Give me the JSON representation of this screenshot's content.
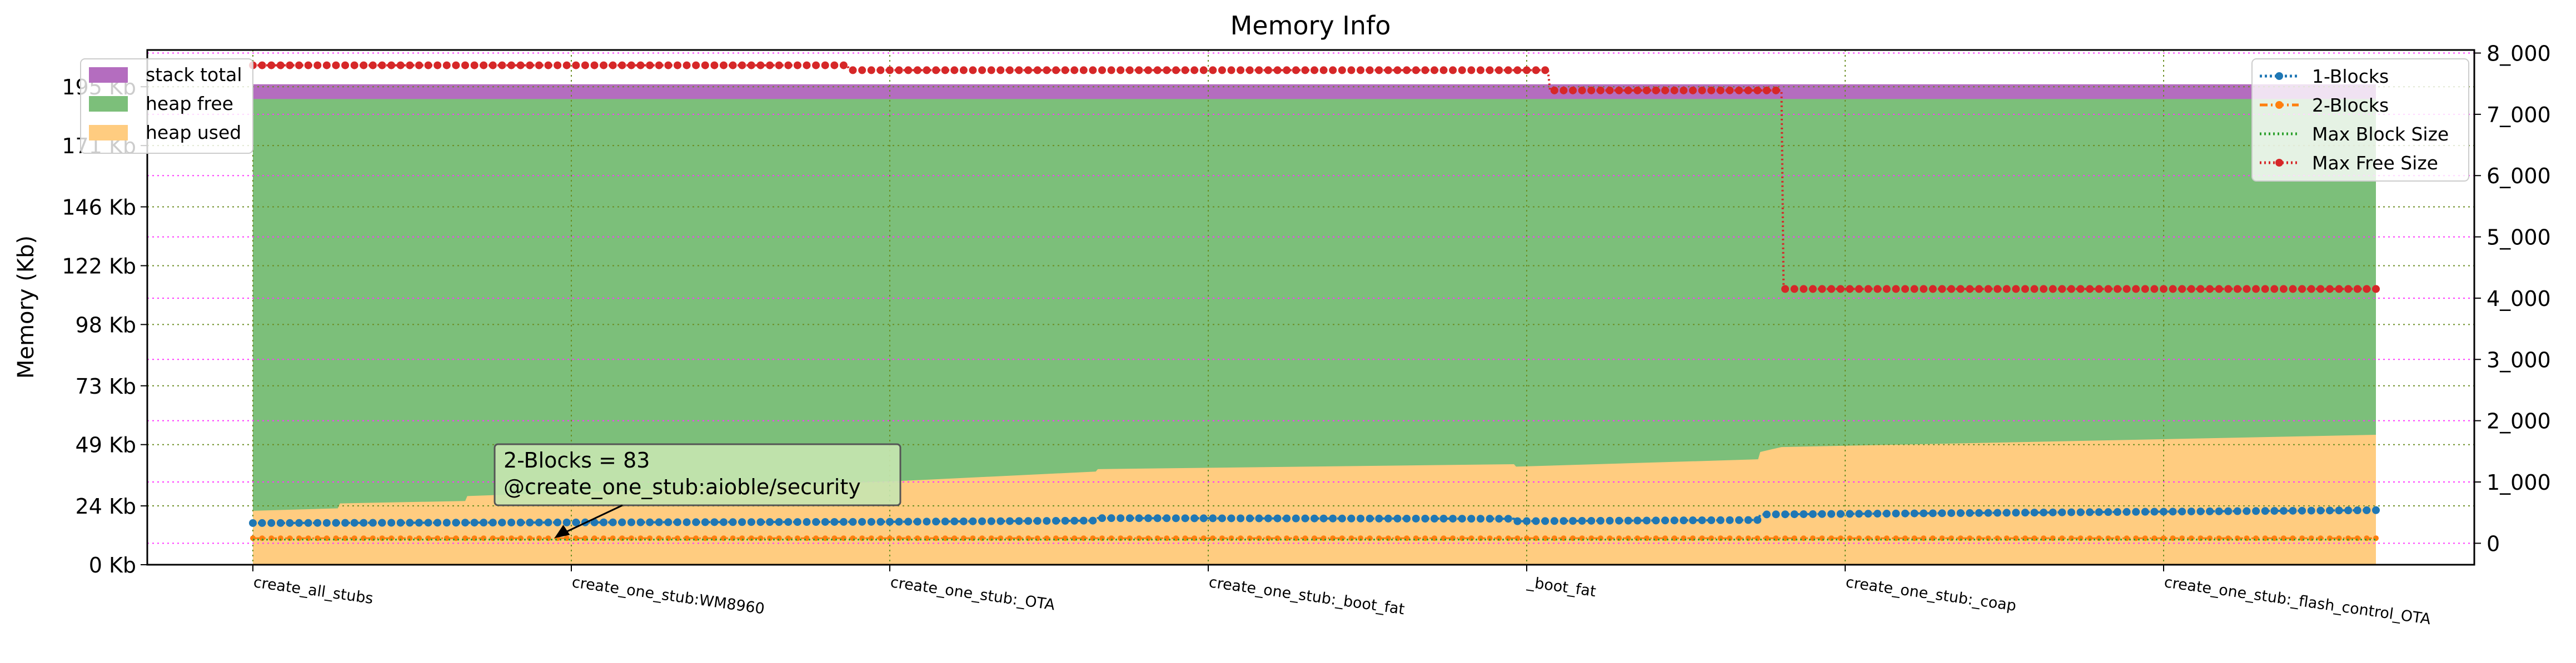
{
  "chart_data": {
    "type": "area",
    "title": "Memory Info",
    "xlabel": "",
    "ylabel": "Memory (Kb)",
    "ylim": [
      0,
      210
    ],
    "y2lim": [
      -350,
      8050
    ],
    "grid": true,
    "y_ticks": [
      0,
      24,
      49,
      73,
      98,
      122,
      146,
      171,
      195
    ],
    "y_tick_labels": [
      "0 Kb",
      "24 Kb",
      "49 Kb",
      "73 Kb",
      "98 Kb",
      "122 Kb",
      "146 Kb",
      "171 Kb",
      "195 Kb"
    ],
    "y2_ticks": [
      0,
      1000,
      2000,
      3000,
      4000,
      5000,
      6000,
      7000,
      8000
    ],
    "y2_tick_labels": [
      "0",
      "1_000",
      "2_000",
      "3_000",
      "4_000",
      "5_000",
      "6_000",
      "7_000",
      "8_000"
    ],
    "x_range": [
      0,
      1000
    ],
    "x_ticks": [
      0,
      150,
      300,
      450,
      600,
      750,
      900
    ],
    "x_tick_labels": [
      "create_all_stubs",
      "create_one_stub:WM8960",
      "create_one_stub:_OTA",
      "create_one_stub:_boot_fat",
      "_boot_fat",
      "create_one_stub:_coap",
      "create_one_stub:_flash_control_OTA"
    ],
    "left_legend": {
      "placement": "top-left",
      "items": [
        {
          "label": "stack total",
          "color": "#b46dbf"
        },
        {
          "label": "heap free",
          "color": "#7cbf7a"
        },
        {
          "label": "heap used",
          "color": "#ffcc80"
        }
      ]
    },
    "right_legend": {
      "placement": "top-right",
      "items": [
        {
          "label": "1-Blocks",
          "color": "#1f77b4",
          "style": "dotted-marker"
        },
        {
          "label": "2-Blocks",
          "color": "#ff7f0e",
          "style": "dashdot-marker"
        },
        {
          "label": "Max Block Size",
          "color": "#2ca02c",
          "style": "dotted"
        },
        {
          "label": "Max Free Size",
          "color": "#d62728",
          "style": "dotted-marker"
        }
      ]
    },
    "areas": [
      {
        "name": "heap used",
        "color": "#ffcc80",
        "x": [
          0,
          40,
          41,
          100,
          101,
          300,
          301,
          397,
          398,
          594,
          595,
          709,
          710,
          720,
          1000
        ],
        "values": [
          22,
          23,
          25,
          26,
          28,
          34,
          34,
          38,
          39,
          41,
          40,
          43,
          46,
          48,
          53
        ]
      },
      {
        "name": "heap free",
        "color": "#7cbf7a",
        "x": [
          0,
          1000
        ],
        "values": [
          190,
          190
        ]
      },
      {
        "name": "stack total",
        "color": "#b46dbf",
        "x": [
          0,
          1000
        ],
        "values": [
          196,
          196
        ]
      }
    ],
    "series": [
      {
        "name": "1-Blocks",
        "axis": "right",
        "color": "#1f77b4",
        "x": [
          0,
          300,
          397,
          398,
          594,
          595,
          709,
          710,
          1000
        ],
        "values": [
          330,
          350,
          370,
          410,
          400,
          360,
          380,
          470,
          540
        ]
      },
      {
        "name": "2-Blocks",
        "axis": "right",
        "color": "#ff7f0e",
        "x": [
          0,
          1000
        ],
        "values": [
          83,
          83
        ]
      },
      {
        "name": "Max Block Size",
        "axis": "right",
        "color": "#2ca02c",
        "x": [
          0,
          1000
        ],
        "values": [
          60,
          60
        ]
      },
      {
        "name": "Max Free Size",
        "axis": "right",
        "color": "#d62728",
        "x": [
          0,
          280,
          281,
          610,
          611,
          720,
          721,
          1000
        ],
        "values": [
          7800,
          7800,
          7720,
          7720,
          7390,
          7390,
          4150,
          4150
        ]
      }
    ],
    "annotation": {
      "lines": [
        "2-Blocks = 83",
        "@create_one_stub:aioble/security"
      ],
      "x": 142,
      "y2": 83
    }
  }
}
